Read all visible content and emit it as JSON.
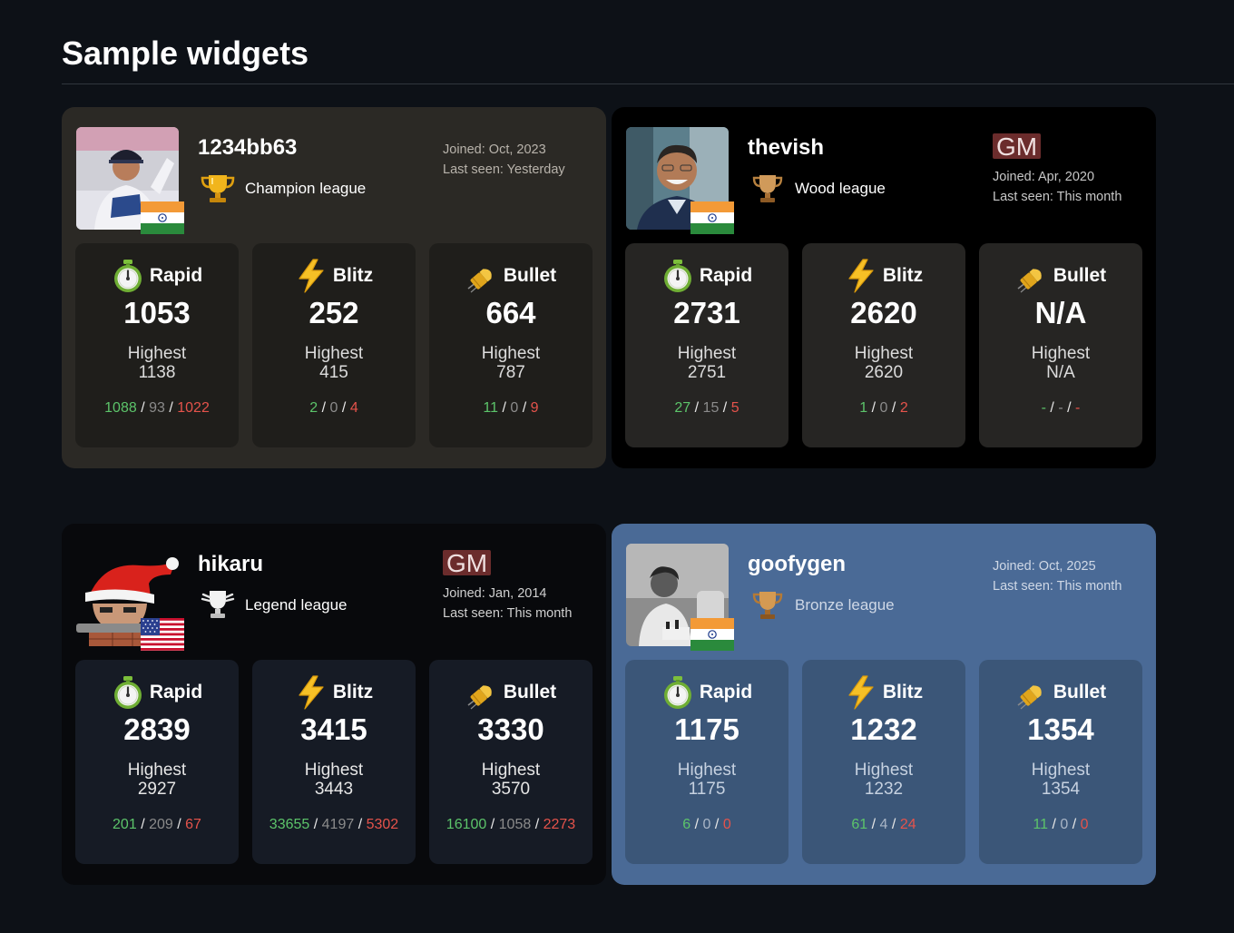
{
  "page": {
    "title": "Sample widgets"
  },
  "stat_labels": {
    "rapid": "Rapid",
    "blitz": "Blitz",
    "bullet": "Bullet",
    "highest": "Highest"
  },
  "icons": [
    "stopwatch-icon",
    "lightning-icon",
    "bullet-icon",
    "trophy-icon",
    "flag-india-icon",
    "flag-usa-icon"
  ],
  "colors": {
    "win": "#5cc46a",
    "draw": "#8b8b8b",
    "loss": "#e5534b",
    "title_badge_bg": "#6b2c2c"
  },
  "widgets": [
    {
      "username": "1234bb63",
      "league": "Champion league",
      "title_badge": "",
      "joined": "Joined: Oct, 2023",
      "last_seen": "Last seen: Yesterday",
      "country": "India",
      "stats": {
        "rapid": {
          "rating": "1053",
          "highest": "1138",
          "wins": "1088",
          "draws": "93",
          "losses": "1022"
        },
        "blitz": {
          "rating": "252",
          "highest": "415",
          "wins": "2",
          "draws": "0",
          "losses": "4"
        },
        "bullet": {
          "rating": "664",
          "highest": "787",
          "wins": "11",
          "draws": "0",
          "losses": "9"
        }
      }
    },
    {
      "username": "thevish",
      "league": "Wood league",
      "title_badge": "GM",
      "joined": "Joined: Apr, 2020",
      "last_seen": "Last seen: This month",
      "country": "India",
      "stats": {
        "rapid": {
          "rating": "2731",
          "highest": "2751",
          "wins": "27",
          "draws": "15",
          "losses": "5"
        },
        "blitz": {
          "rating": "2620",
          "highest": "2620",
          "wins": "1",
          "draws": "0",
          "losses": "2"
        },
        "bullet": {
          "rating": "N/A",
          "highest": "N/A",
          "wins": "-",
          "draws": "-",
          "losses": "-"
        }
      }
    },
    {
      "username": "hikaru",
      "league": "Legend league",
      "title_badge": "GM",
      "joined": "Joined: Jan, 2014",
      "last_seen": "Last seen: This month",
      "country": "USA",
      "stats": {
        "rapid": {
          "rating": "2839",
          "highest": "2927",
          "wins": "201",
          "draws": "209",
          "losses": "67"
        },
        "blitz": {
          "rating": "3415",
          "highest": "3443",
          "wins": "33655",
          "draws": "4197",
          "losses": "5302"
        },
        "bullet": {
          "rating": "3330",
          "highest": "3570",
          "wins": "16100",
          "draws": "1058",
          "losses": "2273"
        }
      }
    },
    {
      "username": "goofygen",
      "league": "Bronze league",
      "title_badge": "",
      "joined": "Joined: Oct, 2025",
      "last_seen": "Last seen: This month",
      "country": "India",
      "stats": {
        "rapid": {
          "rating": "1175",
          "highest": "1175",
          "wins": "6",
          "draws": "0",
          "losses": "0"
        },
        "blitz": {
          "rating": "1232",
          "highest": "1232",
          "wins": "61",
          "draws": "4",
          "losses": "24"
        },
        "bullet": {
          "rating": "1354",
          "highest": "1354",
          "wins": "11",
          "draws": "0",
          "losses": "0"
        }
      }
    }
  ]
}
